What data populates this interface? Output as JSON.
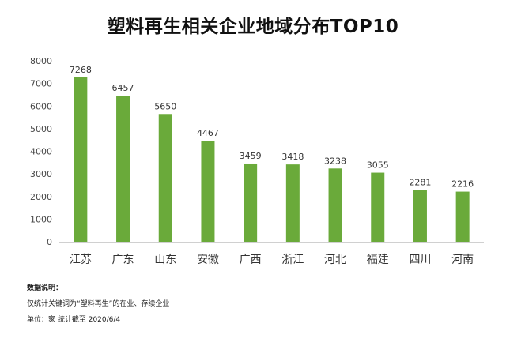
{
  "chart_data": {
    "type": "bar",
    "title": "塑料再生相关企业地域分布TOP10",
    "categories": [
      "江苏",
      "广东",
      "山东",
      "安徽",
      "广西",
      "浙江",
      "河北",
      "福建",
      "四川",
      "河南"
    ],
    "values": [
      7268,
      6457,
      5650,
      4467,
      3459,
      3418,
      3238,
      3055,
      2281,
      2216
    ],
    "ylim": [
      0,
      8000
    ],
    "yticks": [
      0,
      1000,
      2000,
      3000,
      4000,
      5000,
      6000,
      7000,
      8000
    ],
    "grid": false,
    "bar_color": "#6aaa3a"
  },
  "notes": {
    "heading": "数据说明：",
    "line1": "仅统计关键词为“塑料再生”的在业、存续企业",
    "line2": "单位：家    统计截至 2020/6/4"
  }
}
